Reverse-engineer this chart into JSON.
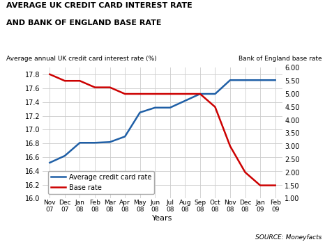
{
  "title_line1": "AVERAGE UK CREDIT CARD INTEREST RATE",
  "title_line2": "AND BANK OF ENGLAND BASE RATE",
  "ylabel_left": "Average annual UK credit card interest rate (%)",
  "ylabel_right": "Bank of England base rate",
  "xlabel": "Years",
  "source": "SOURCE: Moneyfacts",
  "x_labels": [
    "Nov\n07",
    "Dec\n07",
    "Jan\n08",
    "Feb\n08",
    "Mar\n08",
    "Apr\n08",
    "May\n08",
    "Jun\n08",
    "Jul\n08",
    "Aug\n08",
    "Sep\n08",
    "Oct\n08",
    "Nov\n08",
    "Dec\n08",
    "Jan\n09",
    "Feb\n09"
  ],
  "credit_card_rate": [
    16.52,
    16.62,
    16.81,
    16.81,
    16.82,
    16.9,
    17.25,
    17.32,
    17.32,
    17.42,
    17.52,
    17.52,
    17.72,
    17.72,
    17.72,
    17.72
  ],
  "base_rate": [
    5.75,
    5.5,
    5.5,
    5.25,
    5.25,
    5.0,
    5.0,
    5.0,
    5.0,
    5.0,
    5.0,
    4.5,
    3.0,
    2.0,
    1.5,
    1.5
  ],
  "ylim_left": [
    16.0,
    17.9
  ],
  "ylim_right": [
    1.0,
    6.0
  ],
  "yticks_left": [
    16.0,
    16.2,
    16.4,
    16.6,
    16.8,
    17.0,
    17.2,
    17.4,
    17.6,
    17.8
  ],
  "yticks_right": [
    1.0,
    1.5,
    2.0,
    2.5,
    3.0,
    3.5,
    4.0,
    4.5,
    5.0,
    5.5,
    6.0
  ],
  "credit_card_color": "#1f5fa6",
  "base_rate_color": "#cc0000",
  "grid_color": "#cccccc",
  "bg_color": "#ffffff",
  "legend_label_cc": "Average credit card rate",
  "legend_label_br": "Base rate"
}
